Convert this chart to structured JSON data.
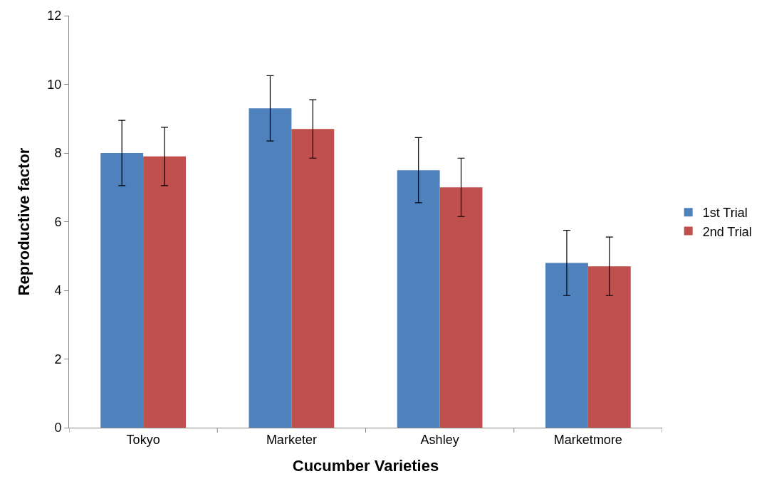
{
  "chart_data": {
    "type": "bar",
    "xlabel": "Cucumber Varieties",
    "ylabel": "Reproductive factor",
    "categories": [
      "Tokyo",
      "Marketer",
      "Ashley",
      "Marketmore"
    ],
    "series": [
      {
        "name": "1st Trial",
        "color": "#4f81bd",
        "values": [
          8.0,
          9.3,
          7.5,
          4.8
        ],
        "errors": [
          0.95,
          0.95,
          0.95,
          0.95
        ]
      },
      {
        "name": "2nd Trial",
        "color": "#c0504d",
        "values": [
          7.9,
          8.7,
          7.0,
          4.7
        ],
        "errors": [
          0.85,
          0.85,
          0.85,
          0.85
        ]
      }
    ],
    "ylim": [
      0,
      12
    ],
    "yticks": [
      0,
      2,
      4,
      6,
      8,
      10,
      12
    ],
    "grid": false,
    "legend": "right"
  }
}
